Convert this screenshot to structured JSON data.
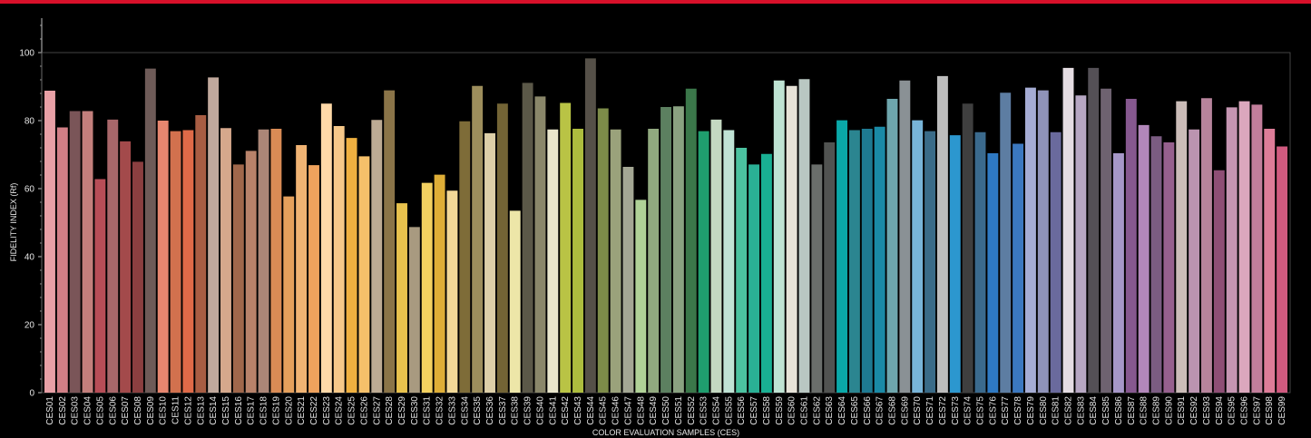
{
  "header": {
    "accent_color": "#d8102a"
  },
  "chart_data": {
    "type": "bar",
    "xlabel": "COLOR EVALUATION SAMPLES (CES)",
    "ylabel": "FIDELITY INDEX (Rf)",
    "ylim": [
      0,
      100
    ],
    "yticks": [
      0,
      20,
      40,
      60,
      80,
      100
    ],
    "grid": false,
    "background": "#000000",
    "categories": [
      "CES01",
      "CES02",
      "CES03",
      "CES04",
      "CES05",
      "CES06",
      "CES07",
      "CES08",
      "CES09",
      "CES10",
      "CES11",
      "CES12",
      "CES13",
      "CES14",
      "CES15",
      "CES16",
      "CES17",
      "CES18",
      "CES19",
      "CES20",
      "CES21",
      "CES22",
      "CES23",
      "CES24",
      "CES25",
      "CES26",
      "CES27",
      "CES28",
      "CES29",
      "CES30",
      "CES31",
      "CES32",
      "CES33",
      "CES34",
      "CES35",
      "CES36",
      "CES37",
      "CES38",
      "CES39",
      "CES40",
      "CES41",
      "CES42",
      "CES43",
      "CES44",
      "CES45",
      "CES46",
      "CES47",
      "CES48",
      "CES49",
      "CES50",
      "CES51",
      "CES52",
      "CES53",
      "CES54",
      "CES55",
      "CES56",
      "CES57",
      "CES58",
      "CES59",
      "CES60",
      "CES61",
      "CES62",
      "CES63",
      "CES64",
      "CES65",
      "CES66",
      "CES67",
      "CES68",
      "CES69",
      "CES70",
      "CES71",
      "CES72",
      "CES73",
      "CES74",
      "CES75",
      "CES76",
      "CES77",
      "CES78",
      "CES79",
      "CES80",
      "CES81",
      "CES82",
      "CES83",
      "CES84",
      "CES85",
      "CES86",
      "CES87",
      "CES88",
      "CES89",
      "CES90",
      "CES91",
      "CES92",
      "CES93",
      "CES94",
      "CES95",
      "CES96",
      "CES97",
      "CES98",
      "CES99"
    ],
    "values": [
      88.8,
      78,
      82.8,
      82.8,
      62.8,
      80.3,
      73.9,
      67.9,
      95.3,
      80,
      76.9,
      77.2,
      81.6,
      92.7,
      77.8,
      67.1,
      71.1,
      77.4,
      77.6,
      57.7,
      72.8,
      66.9,
      85,
      78.4,
      74.9,
      69.5,
      80.2,
      88.9,
      55.7,
      48.7,
      61.7,
      64.1,
      59.4,
      79.8,
      90.2,
      76.3,
      85,
      53.5,
      91.1,
      87.1,
      77.4,
      85.2,
      77.6,
      98.3,
      83.6,
      77.4,
      66.4,
      56.7,
      77.6,
      84,
      84.2,
      89.4,
      76.9,
      80.3,
      77.2,
      72,
      67.1,
      70.2,
      91.8,
      90.2,
      92.2,
      67.1,
      73.6,
      80.1,
      77.2,
      77.6,
      78.2,
      86.4,
      91.8,
      80.1,
      76.9,
      93.1,
      75.7,
      85,
      76.6,
      70.4,
      88.2,
      73.2,
      89.7,
      88.9,
      76.6,
      95.5,
      87.4,
      95.5,
      89.4,
      70.4,
      86.4,
      78.7,
      75.4,
      73.6,
      85.7,
      77.4,
      86.6,
      65.4,
      83.9,
      85.7,
      84.7,
      77.6,
      72.4
    ],
    "colors": [
      "#e8a0a6",
      "#d17f86",
      "#7a5558",
      "#c37f7c",
      "#b74d57",
      "#a8676a",
      "#a34a4b",
      "#8b3f40",
      "#6e5b58",
      "#e7866f",
      "#d2714e",
      "#df6a48",
      "#a85d43",
      "#c0a89c",
      "#d6a88c",
      "#a0674b",
      "#b8826a",
      "#ab8677",
      "#d98b55",
      "#e5a05c",
      "#f0b373",
      "#efa25d",
      "#ffd9a8",
      "#f6c889",
      "#efb040",
      "#f5c06a",
      "#bdab94",
      "#8a7448",
      "#e8c24d",
      "#a89a80",
      "#f3d160",
      "#deae37",
      "#f2d897",
      "#7e6c38",
      "#9d8e5c",
      "#ddcfa8",
      "#736435",
      "#ede6a8",
      "#5b5848",
      "#8a876a",
      "#e9e6cc",
      "#b9c345",
      "#adbd3e",
      "#555048",
      "#7d8c49",
      "#9aa27b",
      "#a4a794",
      "#b0d297",
      "#91a97f",
      "#5c8060",
      "#8aa281",
      "#3b774a",
      "#1f9e6e",
      "#c4d8c1",
      "#c0e3d5",
      "#4bc2a0",
      "#2ab095",
      "#19b093",
      "#bfe3d3",
      "#e6e2d7",
      "#b9c7c2",
      "#6a6e6b",
      "#515351",
      "#0aa8a8",
      "#2b8590",
      "#1e7a92",
      "#1a8aa6",
      "#6ea6ad",
      "#8a9195",
      "#78b4d8",
      "#3a6b88",
      "#bdbdbd",
      "#2c97cf",
      "#3f3f3f",
      "#3b6a8d",
      "#2e79c3",
      "#5d7da2",
      "#3b78c0",
      "#a5acd4",
      "#8f93b9",
      "#6a6a9d",
      "#e5dde3",
      "#b7a7c3",
      "#545056",
      "#6e6270",
      "#a697c8",
      "#86588f",
      "#b287ba",
      "#7b5c82",
      "#96608e",
      "#cbbcb8",
      "#bb94b0",
      "#b7849c",
      "#8e4e75",
      "#c595b2",
      "#dba7bd",
      "#c27e9b",
      "#dd7c98",
      "#d05a7f"
    ]
  }
}
